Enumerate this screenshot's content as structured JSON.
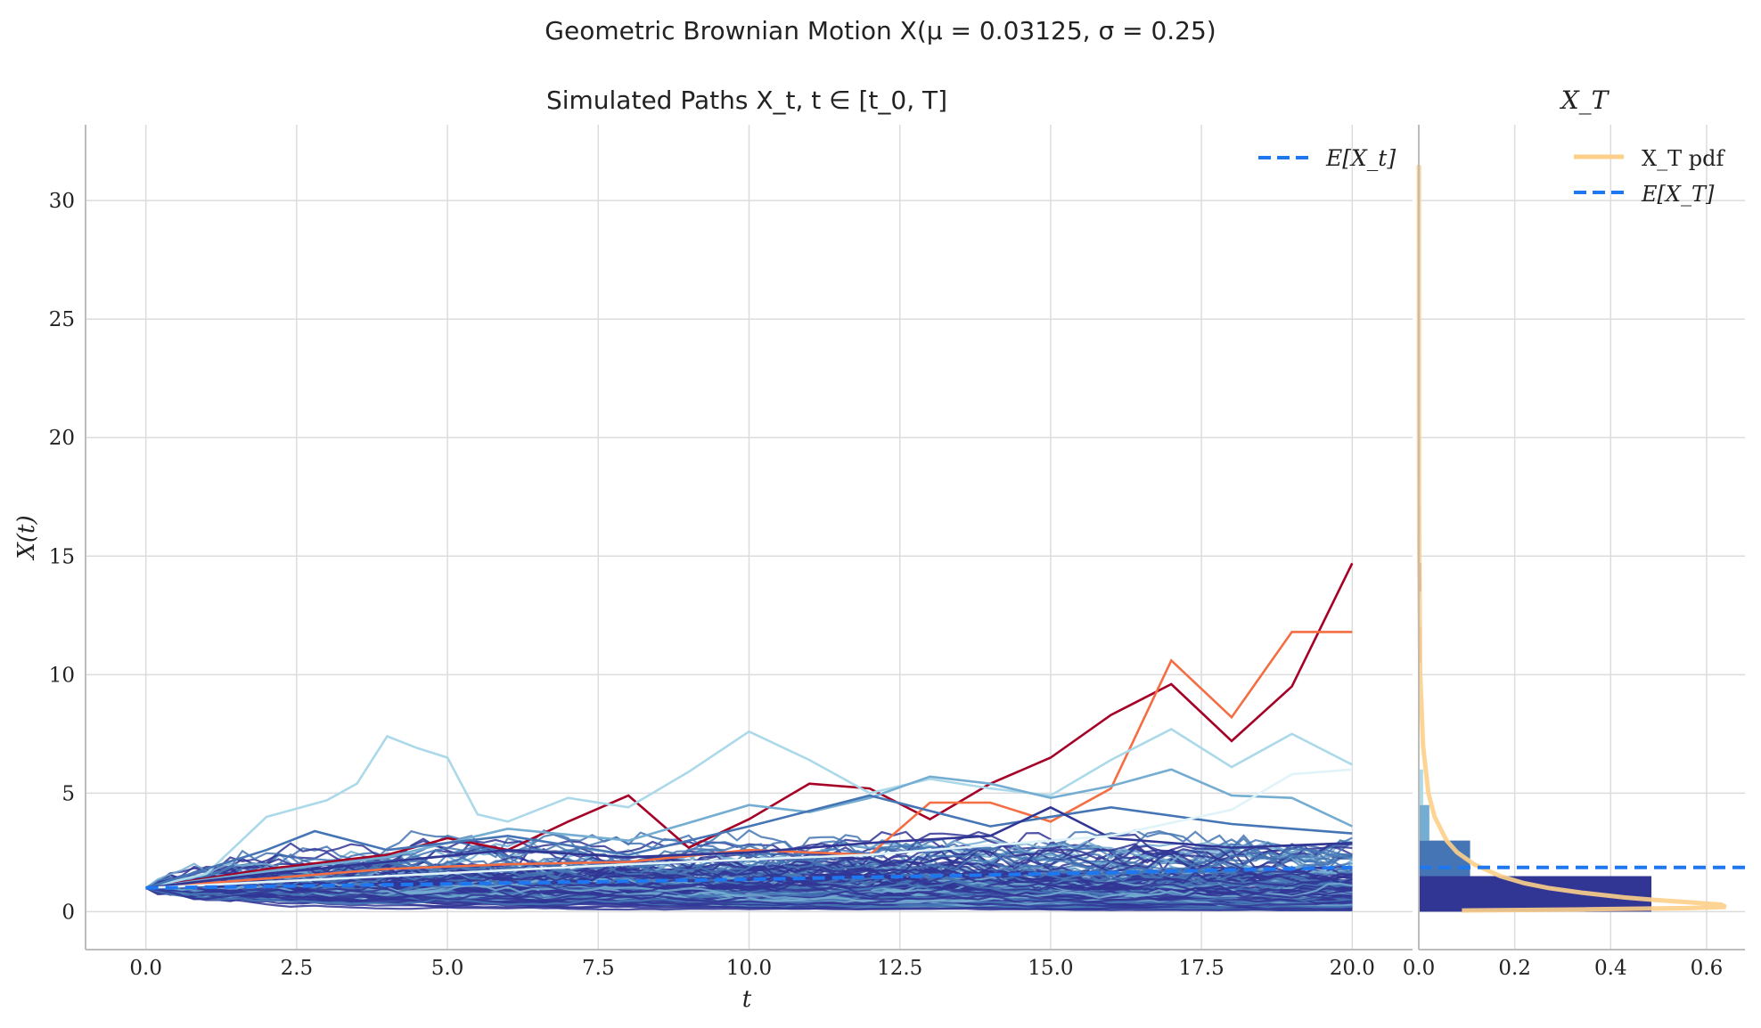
{
  "figure": {
    "title": "Geometric Brownian Motion X(μ = 0.03125, σ = 0.25)"
  },
  "chart_data": [
    {
      "type": "line",
      "title": "Simulated Paths X_t, t ∈ [t_0, T]",
      "xlabel": "t",
      "ylabel": "X(t)",
      "xlim": [
        -1.0,
        21.0
      ],
      "ylim": [
        -1.6,
        33.2
      ],
      "x_ticks": [
        "0.0",
        "2.5",
        "5.0",
        "7.5",
        "10.0",
        "12.5",
        "15.0",
        "17.5",
        "20.0"
      ],
      "x_tick_values": [
        0,
        2.5,
        5,
        7.5,
        10,
        12.5,
        15,
        17.5,
        20
      ],
      "y_ticks": [
        "0",
        "5",
        "10",
        "15",
        "20",
        "25",
        "30"
      ],
      "y_tick_values": [
        0,
        5,
        10,
        15,
        20,
        25,
        30
      ],
      "grid": true,
      "legend": {
        "position": "top-right",
        "entries": [
          {
            "label": "E[X_t]",
            "style": "dashed",
            "color": "#1f77f0"
          }
        ]
      },
      "mu": 0.03125,
      "sigma": 0.25,
      "x0": 1,
      "t_range": [
        0,
        20
      ],
      "expected_value": {
        "x": [
          0,
          5,
          10,
          15,
          20
        ],
        "y": [
          1.0,
          1.169,
          1.367,
          1.598,
          1.868
        ]
      },
      "series": [
        {
          "color": "#a50026",
          "x": [
            0,
            2,
            4,
            5,
            6,
            7,
            8,
            9,
            10,
            11,
            12,
            13,
            14,
            15,
            16,
            17,
            18,
            19,
            20
          ],
          "y": [
            1,
            1.8,
            2.4,
            3.1,
            2.6,
            3.8,
            4.9,
            2.7,
            3.9,
            5.4,
            5.2,
            3.9,
            5.4,
            6.5,
            8.3,
            9.6,
            7.2,
            9.5,
            14.7
          ]
        },
        {
          "color": "#f46d43",
          "x": [
            0,
            2,
            4,
            6,
            8,
            10,
            12,
            13,
            14,
            15,
            16,
            17,
            18,
            19,
            20
          ],
          "y": [
            1,
            1.4,
            1.8,
            2.0,
            2.1,
            2.6,
            2.4,
            4.6,
            4.6,
            3.8,
            5.2,
            10.6,
            8.2,
            11.8,
            11.8
          ]
        },
        {
          "color": "#abd9e9",
          "x": [
            0,
            1,
            2,
            3,
            3.5,
            4,
            4.5,
            5,
            5.5,
            6,
            7,
            8,
            9,
            10,
            11,
            12,
            13,
            14,
            15,
            16,
            17,
            18,
            19,
            20
          ],
          "y": [
            1,
            1.6,
            4.0,
            4.7,
            5.4,
            7.4,
            6.9,
            6.5,
            4.1,
            3.8,
            4.8,
            4.4,
            5.9,
            7.6,
            6.4,
            5.0,
            5.6,
            5.2,
            4.9,
            6.4,
            7.7,
            6.1,
            7.5,
            6.2
          ]
        },
        {
          "color": "#74add1",
          "x": [
            0,
            2,
            4,
            6,
            8,
            10,
            11,
            12,
            13,
            14,
            15,
            16,
            17,
            18,
            19,
            20
          ],
          "y": [
            1,
            1.7,
            2.3,
            3.5,
            3.0,
            4.5,
            4.2,
            4.8,
            5.7,
            5.4,
            4.8,
            5.3,
            6.0,
            4.9,
            4.8,
            3.6
          ]
        },
        {
          "color": "#4575b4",
          "x": [
            0,
            2,
            2.8,
            4,
            6,
            8,
            10,
            12,
            14,
            16,
            18,
            20
          ],
          "y": [
            1,
            2.6,
            3.4,
            2.6,
            3.2,
            2.4,
            3.6,
            4.9,
            3.6,
            4.4,
            3.7,
            3.3
          ]
        },
        {
          "color": "#313695",
          "x": [
            0,
            2,
            4,
            6,
            8,
            10,
            12,
            14,
            15,
            16,
            18,
            20
          ],
          "y": [
            1,
            1.6,
            2.1,
            2.6,
            2.3,
            2.5,
            2.9,
            3.2,
            4.4,
            3.1,
            2.7,
            2.9
          ]
        },
        {
          "color": "#e0f3f8",
          "x": [
            0,
            4,
            8,
            12,
            16,
            18,
            19,
            20
          ],
          "y": [
            1,
            1.5,
            2.0,
            2.4,
            3.2,
            4.3,
            5.8,
            6.0
          ]
        }
      ]
    },
    {
      "type": "histogram",
      "title": "X_T",
      "xlim": [
        0,
        0.68
      ],
      "x_ticks": [
        "0.0",
        "0.2",
        "0.4",
        "0.6"
      ],
      "x_tick_values": [
        0,
        0.2,
        0.4,
        0.6
      ],
      "grid": true,
      "legend": {
        "position": "top-right",
        "entries": [
          {
            "label": "X_T pdf",
            "style": "solid",
            "color": "#fdcf88"
          },
          {
            "label": "E[X_T]",
            "style": "dashed",
            "color": "#1f77f0"
          }
        ]
      },
      "expected_value": 1.868,
      "bins": [
        {
          "y0": 0,
          "y1": 1.5,
          "density": 0.485,
          "color": "#313695"
        },
        {
          "y0": 1.5,
          "y1": 3.0,
          "density": 0.107,
          "color": "#4575b4"
        },
        {
          "y0": 3.0,
          "y1": 4.5,
          "density": 0.022,
          "color": "#74add1"
        },
        {
          "y0": 4.5,
          "y1": 6.0,
          "density": 0.009,
          "color": "#abd9e9"
        },
        {
          "y0": 10.5,
          "y1": 12.0,
          "density": 0.003,
          "color": "#f46d43"
        },
        {
          "y0": 13.5,
          "y1": 14.7,
          "density": 0.003,
          "color": "#a50026"
        }
      ],
      "pdf": {
        "y": [
          0.05,
          0.1,
          0.15,
          0.2,
          0.3,
          0.4,
          0.5,
          0.6,
          0.8,
          1.0,
          1.2,
          1.5,
          2.0,
          2.5,
          3.0,
          4.0,
          5.0,
          7.0,
          10.0,
          15.0,
          20.0,
          31.5
        ],
        "density": [
          0.09,
          0.35,
          0.56,
          0.64,
          0.63,
          0.56,
          0.49,
          0.43,
          0.34,
          0.27,
          0.22,
          0.17,
          0.115,
          0.08,
          0.058,
          0.033,
          0.02,
          0.009,
          0.003,
          0.001,
          0.0004,
          0.0001
        ]
      }
    }
  ]
}
